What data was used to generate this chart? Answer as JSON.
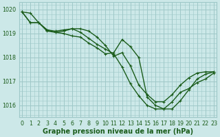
{
  "xlabel": "Graphe pression niveau de la mer (hPa)",
  "ylim": [
    1015.5,
    1020.3
  ],
  "xlim": [
    -0.3,
    23.3
  ],
  "yticks": [
    1016,
    1017,
    1018,
    1019,
    1020
  ],
  "xticks": [
    0,
    1,
    2,
    3,
    4,
    5,
    6,
    7,
    8,
    9,
    10,
    11,
    12,
    13,
    14,
    15,
    16,
    17,
    18,
    19,
    20,
    21,
    22,
    23
  ],
  "background_color": "#cce8e8",
  "grid_color": "#9ec8c8",
  "line_color": "#1a5c1a",
  "series": [
    [
      1019.9,
      1019.85,
      1019.45,
      1019.1,
      1019.05,
      1019.0,
      1018.9,
      1018.85,
      1018.6,
      1018.4,
      1018.15,
      1018.2,
      1018.75,
      1018.45,
      1018.0,
      1016.35,
      1016.0,
      1015.85,
      1015.85,
      1016.2,
      1016.65,
      1017.1,
      1017.3,
      1017.4
    ],
    [
      1019.9,
      1019.45,
      1019.45,
      1019.15,
      1019.05,
      1019.1,
      1019.2,
      1019.05,
      1018.8,
      1018.55,
      1018.35,
      1018.15,
      1017.6,
      1016.9,
      1016.4,
      1016.0,
      1015.85,
      1015.85,
      1016.15,
      1016.55,
      1016.7,
      1016.95,
      1017.1,
      1017.35
    ],
    [
      1019.9,
      1019.45,
      1019.45,
      1019.15,
      1019.1,
      1019.15,
      1019.2,
      1019.2,
      1019.1,
      1018.85,
      1018.5,
      1018.05,
      1018.2,
      1017.65,
      1016.85,
      1016.45,
      1016.15,
      1016.15,
      1016.45,
      1016.85,
      1017.15,
      1017.35,
      1017.4,
      1017.4
    ]
  ],
  "marker": "+",
  "marker_size": 3.5,
  "line_width": 1.0,
  "font_color": "#1a5c1a",
  "tick_fontsize": 5.8,
  "label_fontsize": 7.0,
  "label_fontweight": "bold"
}
